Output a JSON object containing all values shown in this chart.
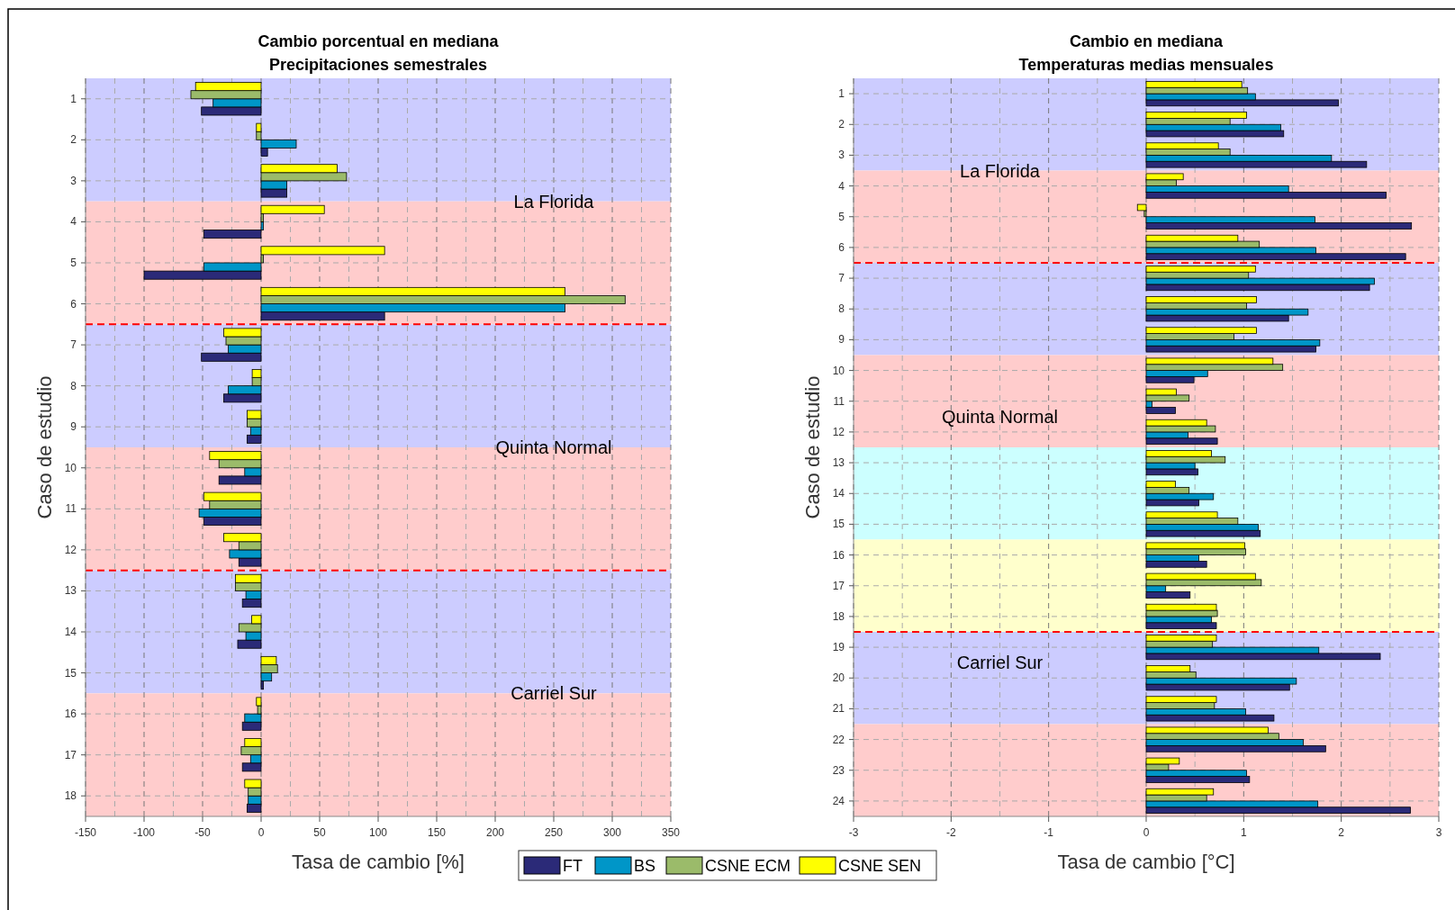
{
  "chart_data": [
    {
      "type": "bar",
      "orientation": "horizontal",
      "title": "Cambio porcentual en mediana",
      "subtitle": "Precipitaciones semestrales",
      "xlabel": "Tasa de cambio [%]",
      "ylabel": "Caso de estudio",
      "categories": [
        "1",
        "2",
        "3",
        "4",
        "5",
        "6",
        "7",
        "8",
        "9",
        "10",
        "11",
        "12",
        "13",
        "14",
        "15",
        "16",
        "17",
        "18"
      ],
      "series": [
        {
          "name": "FT",
          "color": "#2b2a78",
          "values": [
            -51,
            5.5,
            22,
            -49,
            -100,
            105.5,
            -51,
            -32,
            -12,
            -36,
            -49,
            -19,
            -16,
            -20,
            2,
            -16,
            -16,
            -12
          ]
        },
        {
          "name": "BS",
          "color": "#0096c8",
          "values": [
            -41,
            30,
            22,
            2,
            -49,
            259.6,
            -28,
            -28,
            -9,
            -14,
            -53,
            -27,
            -13,
            -13,
            9,
            -14,
            -9,
            -11
          ]
        },
        {
          "name": "CSNE ECM",
          "color": "#9bbb6a",
          "values": [
            -60,
            -4,
            73,
            2,
            2,
            311,
            -30,
            -7.6,
            -12,
            -36,
            -44,
            -19,
            -22,
            -19,
            14,
            -3,
            -17,
            -11
          ]
        },
        {
          "name": "CSNE SEN",
          "color": "#ffff00",
          "values": [
            -56,
            -4,
            65,
            54,
            105.5,
            259.6,
            -32,
            -7.6,
            -12,
            -44,
            -49,
            -32,
            -22,
            -8,
            13,
            -4,
            -14,
            -14
          ]
        }
      ],
      "xlim": [
        -150,
        350
      ],
      "xticks": [
        -150,
        -100,
        -50,
        0,
        50,
        100,
        150,
        200,
        250,
        300,
        350
      ],
      "grid": true,
      "legend": "bottom",
      "annotations": [
        "La Florida",
        "Quinta Normal",
        "Carriel Sur"
      ]
    },
    {
      "type": "bar",
      "orientation": "horizontal",
      "title": "Cambio en mediana",
      "subtitle": "Temperaturas medias mensuales",
      "xlabel": "Tasa de cambio [°C]",
      "ylabel": "Caso de estudio",
      "categories": [
        "1",
        "2",
        "3",
        "4",
        "5",
        "6",
        "7",
        "8",
        "9",
        "10",
        "11",
        "12",
        "13",
        "14",
        "15",
        "16",
        "17",
        "18",
        "19",
        "20",
        "21",
        "22",
        "23",
        "24"
      ],
      "series": [
        {
          "color": "#2b2a78",
          "values": [
            1.97,
            1.41,
            2.26,
            2.46,
            2.72,
            2.66,
            2.29,
            1.46,
            1.74,
            0.49,
            0.3,
            0.73,
            0.53,
            0.54,
            1.17,
            0.62,
            0.45,
            0.72,
            2.4,
            1.47,
            1.31,
            1.84,
            1.06,
            2.71
          ]
        },
        {
          "color": "#0096c8",
          "values": [
            1.12,
            1.38,
            1.9,
            1.46,
            1.73,
            1.74,
            2.34,
            1.66,
            1.78,
            0.63,
            0.06,
            0.43,
            0.5,
            0.69,
            1.15,
            0.54,
            0.2,
            0.67,
            1.77,
            1.54,
            1.02,
            1.61,
            1.03,
            1.76
          ]
        },
        {
          "color": "#9bbb6a",
          "values": [
            1.04,
            0.86,
            0.86,
            0.31,
            -0.02,
            1.16,
            1.05,
            1.03,
            0.9,
            1.4,
            0.44,
            0.71,
            0.81,
            0.44,
            0.94,
            1.02,
            1.18,
            0.73,
            0.68,
            0.51,
            0.7,
            1.36,
            0.23,
            0.62
          ]
        },
        {
          "color": "#ffff00",
          "values": [
            0.98,
            1.03,
            0.74,
            0.38,
            -0.09,
            0.94,
            1.12,
            1.13,
            1.13,
            1.3,
            0.31,
            0.62,
            0.67,
            0.3,
            0.73,
            1.01,
            1.12,
            0.72,
            0.72,
            0.45,
            0.72,
            1.25,
            0.34,
            0.69
          ]
        }
      ],
      "xlim": [
        -3,
        3
      ],
      "xticks": [
        -3,
        -2,
        -1,
        0,
        1,
        2,
        3
      ],
      "grid": true,
      "annotations": [
        "La Florida",
        "Quinta Normal",
        "Carriel Sur"
      ]
    }
  ]
}
